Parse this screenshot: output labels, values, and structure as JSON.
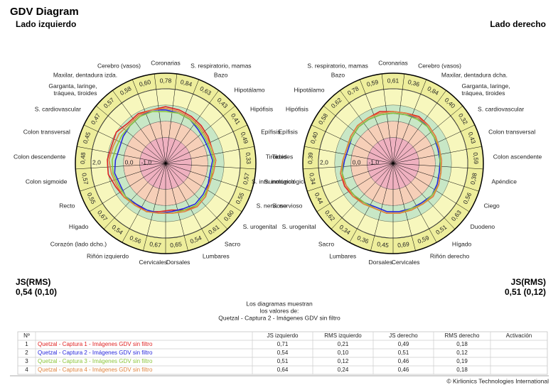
{
  "title": "GDV Diagram",
  "chart_data": [
    {
      "type": "radar",
      "title": "Lado izquierdo",
      "categories": [
        "Coronarias",
        "S. respiratorio, mamas",
        "Bazo",
        "Hipotálamo",
        "Hipófisis",
        "Epífisis",
        "Tiroides",
        "S. inmunológico",
        "S. nervioso",
        "S. urogenital",
        "Sacro",
        "Lumbares",
        "Dorsales",
        "Cervicales",
        "Riñón izquierdo",
        "Corazón (lado dcho.)",
        "Hígado",
        "Recto",
        "Colon sigmoide",
        "Colon descendente",
        "Colon transversal",
        "S. cardiovascular",
        "Garganta, laringe, tráquea, tiroides",
        "Maxilar, dentadura izda.",
        "Cerebro (vasos)"
      ],
      "sector_values": [
        "0,78",
        "0,84",
        "0,63",
        "0,43",
        "0,41",
        "0,49",
        "0,33",
        "0,57",
        "0,55",
        "0,60",
        "0,61",
        "0,54",
        "0,65",
        "0,67",
        "0,56",
        "0,54",
        "0,67",
        "0,55",
        "0,57",
        "0,48",
        "0,45",
        "0,47",
        "0,57",
        "0,58",
        "0,60"
      ],
      "rlim": [
        -2.6,
        2.0
      ],
      "rticks": [
        {
          "value": -1,
          "label": "-1,0"
        },
        {
          "value": 0,
          "label": "0,0"
        },
        {
          "value": 2,
          "label": "2,0"
        }
      ],
      "zones": [
        {
          "to": 2.0,
          "color": "#f7f7bd"
        },
        {
          "to": 1.0,
          "color": "#c8e7c6"
        },
        {
          "to": 0,
          "color": "#f6cfb8"
        },
        {
          "to": -1,
          "color": "#efb1c0"
        }
      ],
      "ring_color": "#eeee9c",
      "series": [
        {
          "color": "#e02424",
          "values": [
            0.9,
            0.8,
            0.7,
            0.6,
            0.5,
            0.4,
            0.5,
            0.4,
            0.3,
            0.6,
            0.7,
            0.5,
            0.3,
            0.4,
            0.6,
            0.5,
            0.7,
            0.8,
            1.0,
            1.0,
            0.9,
            1.0,
            0.8,
            0.9,
            0.8
          ]
        },
        {
          "color": "#2828dc",
          "values": [
            0.7,
            0.6,
            0.5,
            0.3,
            0.2,
            0.2,
            0.3,
            0.2,
            0.3,
            0.4,
            0.5,
            0.4,
            0.4,
            0.5,
            0.5,
            0.5,
            0.6,
            0.5,
            0.6,
            0.5,
            0.4,
            0.5,
            0.6,
            0.7,
            0.8
          ]
        },
        {
          "color": "#8cc63c",
          "values": [
            0.6,
            0.6,
            0.5,
            0.4,
            0.3,
            0.3,
            0.4,
            0.3,
            0.4,
            0.5,
            0.6,
            0.5,
            0.5,
            0.5,
            0.6,
            0.6,
            0.6,
            0.6,
            0.7,
            0.7,
            0.6,
            0.6,
            0.6,
            0.7,
            0.7
          ]
        },
        {
          "color": "#e08440",
          "values": [
            0.8,
            0.7,
            0.6,
            0.5,
            0.4,
            0.4,
            0.5,
            0.4,
            0.4,
            0.6,
            0.7,
            0.6,
            0.5,
            0.5,
            0.6,
            0.6,
            0.7,
            0.7,
            0.8,
            0.9,
            0.8,
            0.8,
            0.7,
            0.8,
            0.8
          ]
        }
      ],
      "summary_label": "JS(RMS)",
      "summary": "0,54 (0,10)"
    },
    {
      "type": "radar",
      "title": "Lado derecho",
      "categories": [
        "Coronarias",
        "Cerebro (vasos)",
        "Maxilar, dentadura dcha.",
        "Garganta, laringe, tráquea, tiroides",
        "S. cardiovascular",
        "Colon transversal",
        "Colon ascendente",
        "Apéndice",
        "Ciego",
        "Duodeno",
        "Hígado",
        "Riñón derecho",
        "Cervicales",
        "Dorsales",
        "Lumbares",
        "Sacro",
        "S. urogenital",
        "S. nervioso",
        "S. inmunológico",
        "Tiroides",
        "Epífisis",
        "Hipófisis",
        "Hipotálamo",
        "Bazo",
        "S. respiratorio, mamas"
      ],
      "sector_values": [
        "0,61",
        "0,36",
        "0,84",
        "0,40",
        "0,32",
        "0,43",
        "0,59",
        "0,38",
        "0,56",
        "0,63",
        "0,51",
        "0,59",
        "0,69",
        "0,45",
        "0,36",
        "0,34",
        "0,62",
        "0,44",
        "0,34",
        "0,39",
        "0,40",
        "0,58",
        "0,62",
        "0,78",
        "0,59"
      ],
      "rlim": [
        -2.6,
        2.0
      ],
      "rticks": [
        {
          "value": -1,
          "label": "-1,0"
        },
        {
          "value": 0,
          "label": "0,0"
        },
        {
          "value": 2,
          "label": "2,0"
        }
      ],
      "zones": [
        {
          "to": 2.0,
          "color": "#f7f7bd"
        },
        {
          "to": 1.0,
          "color": "#c8e7c6"
        },
        {
          "to": 0,
          "color": "#f6cfb8"
        },
        {
          "to": -1,
          "color": "#efb1c0"
        }
      ],
      "ring_color": "#eeee9c",
      "series": [
        {
          "color": "#e02424",
          "values": [
            0.6,
            0.6,
            0.7,
            0.6,
            0.5,
            0.4,
            0.3,
            0.4,
            0.5,
            0.6,
            0.5,
            0.4,
            0.5,
            0.5,
            0.4,
            0.4,
            0.6,
            0.7,
            0.7,
            0.5,
            0.4,
            0.5,
            0.6,
            0.6,
            0.7
          ]
        },
        {
          "color": "#2828dc",
          "values": [
            0.5,
            0.5,
            0.6,
            0.5,
            0.4,
            0.3,
            0.3,
            0.3,
            0.4,
            0.5,
            0.4,
            0.4,
            0.4,
            0.4,
            0.3,
            0.4,
            0.5,
            0.6,
            0.6,
            0.4,
            0.3,
            0.4,
            0.5,
            0.5,
            0.5
          ]
        },
        {
          "color": "#8cc63c",
          "values": [
            0.5,
            0.5,
            0.5,
            0.5,
            0.4,
            0.4,
            0.3,
            0.4,
            0.5,
            0.5,
            0.5,
            0.4,
            0.5,
            0.5,
            0.4,
            0.4,
            0.5,
            0.6,
            0.6,
            0.5,
            0.4,
            0.4,
            0.5,
            0.5,
            0.5
          ]
        },
        {
          "color": "#e08440",
          "values": [
            0.6,
            0.6,
            0.6,
            0.6,
            0.5,
            0.4,
            0.4,
            0.4,
            0.5,
            0.6,
            0.5,
            0.5,
            0.5,
            0.5,
            0.4,
            0.5,
            0.6,
            0.6,
            0.7,
            0.5,
            0.4,
            0.5,
            0.6,
            0.6,
            0.6
          ]
        }
      ],
      "summary_label": "JS(RMS)",
      "summary": "0,51 (0,12)"
    }
  ],
  "note": [
    "Los diagramas muestran",
    "los valores de:",
    "Quetzal - Captura 2 - Imágenes GDV sin filtro"
  ],
  "table": {
    "header": [
      "Nº",
      "JS izquierdo",
      "RMS izquierdo",
      "JS derecho",
      "RMS derecho",
      "Activación"
    ],
    "rows": [
      [
        "1",
        "Quetzal - Captura 1 - Imágenes GDV sin filtro",
        "0,71",
        "0,21",
        "0,49",
        "0,18"
      ],
      [
        "2",
        "Quetzal - Captura 2 - Imágenes GDV sin filtro",
        "0,54",
        "0,10",
        "0,51",
        "0,12"
      ],
      [
        "3",
        "Quetzal - Captura 3 - Imágenes GDV sin filtro",
        "0,51",
        "0,12",
        "0,46",
        "0,19"
      ],
      [
        "4",
        "Quetzal - Captura 4 - Imágenes GDV sin filtro",
        "0,64",
        "0,24",
        "0,46",
        "0,18"
      ]
    ]
  },
  "footer": "© Kirlionics Technologies International"
}
